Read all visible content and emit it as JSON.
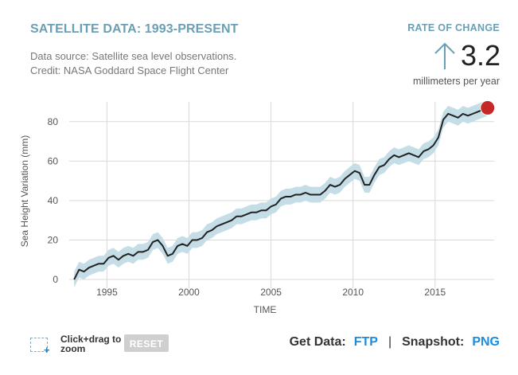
{
  "header": {
    "title": "SATELLITE DATA: 1993-PRESENT",
    "source_line1": "Data source: Satellite sea level observations.",
    "source_line2": "Credit: NASA Goddard Space Flight Center"
  },
  "rate": {
    "label": "RATE OF CHANGE",
    "value": "3.2",
    "unit": "millimeters per year",
    "arrow_icon": "up-arrow-icon"
  },
  "controls": {
    "zoom_icon": "zoom-select-icon",
    "zoom_text": "Click+drag to zoom",
    "reset_label": "RESET"
  },
  "footer": {
    "get_data_label": "Get Data:",
    "ftp_label": "FTP",
    "separator": "|",
    "snapshot_label": "Snapshot:",
    "png_label": "PNG"
  },
  "colors": {
    "title": "#6a9fb5",
    "line": "#222222",
    "band": "#c5dde6",
    "marker": "#c62828",
    "link": "#1a8ce0",
    "grid": "#d9d9d9"
  },
  "chart_data": {
    "type": "line",
    "title": "",
    "xlabel": "TIME",
    "ylabel": "Sea Height Variation (mm)",
    "xlim": [
      1992.7,
      2018.6
    ],
    "ylim": [
      -2,
      90
    ],
    "x_ticks": [
      1995,
      2000,
      2005,
      2010,
      2015
    ],
    "y_ticks": [
      0,
      20,
      40,
      60,
      80
    ],
    "grid": true,
    "uncertainty_band_mm": 4,
    "series": [
      {
        "x": [
          1993.0,
          1993.3,
          1993.6,
          1993.9,
          1994.2,
          1994.5,
          1994.8,
          1995.1,
          1995.4,
          1995.7,
          1996.0,
          1996.3,
          1996.6,
          1996.9,
          1997.2,
          1997.5,
          1997.8,
          1998.1,
          1998.4,
          1998.7,
          1999.0,
          1999.3,
          1999.6,
          1999.9,
          2000.2,
          2000.5,
          2000.8,
          2001.1,
          2001.4,
          2001.7,
          2002.0,
          2002.3,
          2002.6,
          2002.9,
          2003.2,
          2003.5,
          2003.8,
          2004.1,
          2004.4,
          2004.7,
          2005.0,
          2005.3,
          2005.6,
          2005.9,
          2006.2,
          2006.5,
          2006.8,
          2007.1,
          2007.4,
          2007.7,
          2008.0,
          2008.3,
          2008.6,
          2008.9,
          2009.2,
          2009.5,
          2009.8,
          2010.1,
          2010.4,
          2010.7,
          2011.0,
          2011.3,
          2011.6,
          2011.9,
          2012.2,
          2012.5,
          2012.8,
          2013.1,
          2013.4,
          2013.7,
          2014.0,
          2014.3,
          2014.6,
          2014.9,
          2015.2,
          2015.5,
          2015.8,
          2016.1,
          2016.4,
          2016.7,
          2017.0,
          2017.3,
          2017.6,
          2017.9,
          2018.2
        ],
        "values": [
          0,
          5,
          4,
          6,
          7,
          8,
          8,
          11,
          12,
          10,
          12,
          13,
          12,
          14,
          14,
          15,
          19,
          20,
          17,
          12,
          13,
          17,
          18,
          17,
          20,
          20,
          21,
          24,
          25,
          27,
          28,
          29,
          30,
          32,
          32,
          33,
          34,
          34,
          35,
          35,
          37,
          38,
          41,
          42,
          42,
          43,
          43,
          44,
          43,
          43,
          43,
          45,
          48,
          47,
          48,
          51,
          53,
          55,
          54,
          48,
          48,
          53,
          57,
          58,
          61,
          63,
          62,
          63,
          64,
          63,
          62,
          65,
          66,
          68,
          72,
          81,
          84,
          83,
          82,
          84,
          83,
          84,
          85,
          86,
          87
        ]
      }
    ],
    "end_marker": {
      "x": 2018.2,
      "y": 87
    }
  }
}
